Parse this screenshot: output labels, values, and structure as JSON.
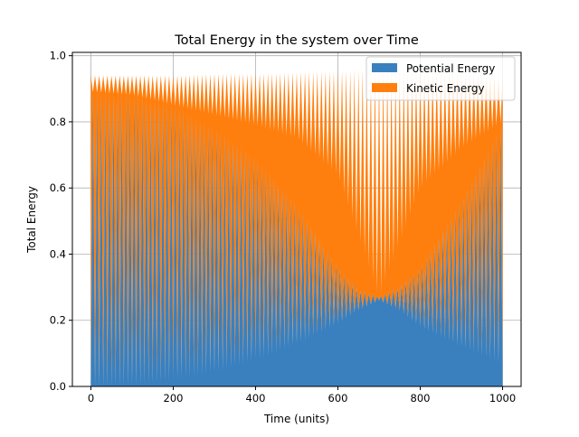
{
  "chart_data": {
    "type": "area",
    "title": "Total Energy in the system over Time",
    "xlabel": "Time (units)",
    "ylabel": "Total Energy",
    "xlim": [
      -45,
      1045
    ],
    "ylim": [
      0,
      1.01
    ],
    "xticks": [
      0,
      200,
      400,
      600,
      800,
      1000
    ],
    "xtick_labels": [
      "0",
      "200",
      "400",
      "600",
      "800",
      "1000"
    ],
    "yticks": [
      0.0,
      0.2,
      0.4,
      0.6,
      0.8,
      1.0
    ],
    "ytick_labels": [
      "0.0",
      "0.2",
      "0.4",
      "0.6",
      "0.8",
      "1.0"
    ],
    "grid": true,
    "legend_position": "top-right",
    "stacked": true,
    "oscillation": {
      "cycles": 100,
      "x_range": [
        0,
        1000
      ]
    },
    "series": [
      {
        "name": "Potential Energy",
        "color": "#3a80bf",
        "envelope_max_x": [
          0,
          100,
          200,
          300,
          400,
          500,
          600,
          650,
          700,
          750,
          800,
          900,
          1000
        ],
        "envelope_max_y": [
          0.89,
          0.88,
          0.85,
          0.78,
          0.69,
          0.55,
          0.36,
          0.29,
          0.27,
          0.3,
          0.36,
          0.56,
          0.8
        ],
        "envelope_min_x": [
          0,
          100,
          200,
          300,
          400,
          500,
          600,
          650,
          700,
          750,
          800,
          900,
          1000
        ],
        "envelope_min_y": [
          0.0,
          0.005,
          0.02,
          0.045,
          0.08,
          0.13,
          0.19,
          0.23,
          0.26,
          0.23,
          0.18,
          0.12,
          0.065
        ]
      },
      {
        "name": "Kinetic Energy",
        "color": "#ff7f0e",
        "total_peak_x": [
          0,
          100,
          200,
          300,
          400,
          500,
          600,
          700,
          800,
          900,
          1000
        ],
        "total_peak_y": [
          0.94,
          0.94,
          0.94,
          0.945,
          0.945,
          0.95,
          0.955,
          0.96,
          0.955,
          0.945,
          0.935
        ],
        "total_trough_x": [
          0,
          100,
          200,
          300,
          400,
          500,
          600,
          700,
          800,
          900,
          1000
        ],
        "total_trough_y": [
          0.89,
          0.88,
          0.85,
          0.82,
          0.79,
          0.75,
          0.64,
          0.27,
          0.6,
          0.72,
          0.8
        ]
      }
    ]
  }
}
